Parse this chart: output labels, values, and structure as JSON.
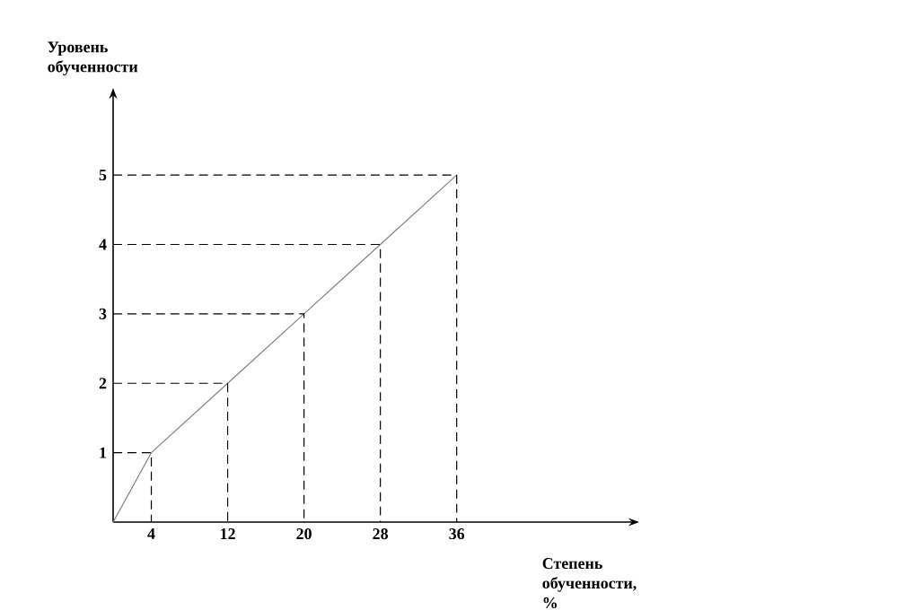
{
  "chart_data": {
    "type": "line",
    "xlabel": "Степень обученности, %",
    "ylabel": "Уровень обученности",
    "xlim": [
      0,
      54
    ],
    "ylim": [
      0,
      6.1
    ],
    "xticks": [
      4,
      12,
      20,
      28,
      36
    ],
    "yticks": [
      1,
      2,
      3,
      4,
      5
    ],
    "marker": "none",
    "line_style": "solid",
    "series": [
      {
        "x": [
          0,
          4,
          12,
          20,
          28,
          36
        ],
        "values": [
          0,
          1,
          2,
          3,
          4,
          5
        ],
        "color": "#808080"
      },
      {
        "x": [
          0,
          4,
          4
        ],
        "values": [
          1,
          1,
          0
        ],
        "color": "#000000",
        "line_style": "dashed"
      },
      {
        "x": [
          0,
          12,
          12
        ],
        "values": [
          2,
          2,
          0
        ],
        "color": "#000000",
        "line_style": "dashed"
      },
      {
        "x": [
          0,
          20,
          20
        ],
        "values": [
          3,
          3,
          0
        ],
        "color": "#000000",
        "line_style": "dashed"
      },
      {
        "x": [
          0,
          28,
          28
        ],
        "values": [
          4,
          4,
          0
        ],
        "color": "#000000",
        "line_style": "dashed"
      },
      {
        "x": [
          0,
          36,
          36
        ],
        "values": [
          5,
          5,
          0
        ],
        "color": "#000000",
        "line_style": "dashed"
      }
    ]
  }
}
